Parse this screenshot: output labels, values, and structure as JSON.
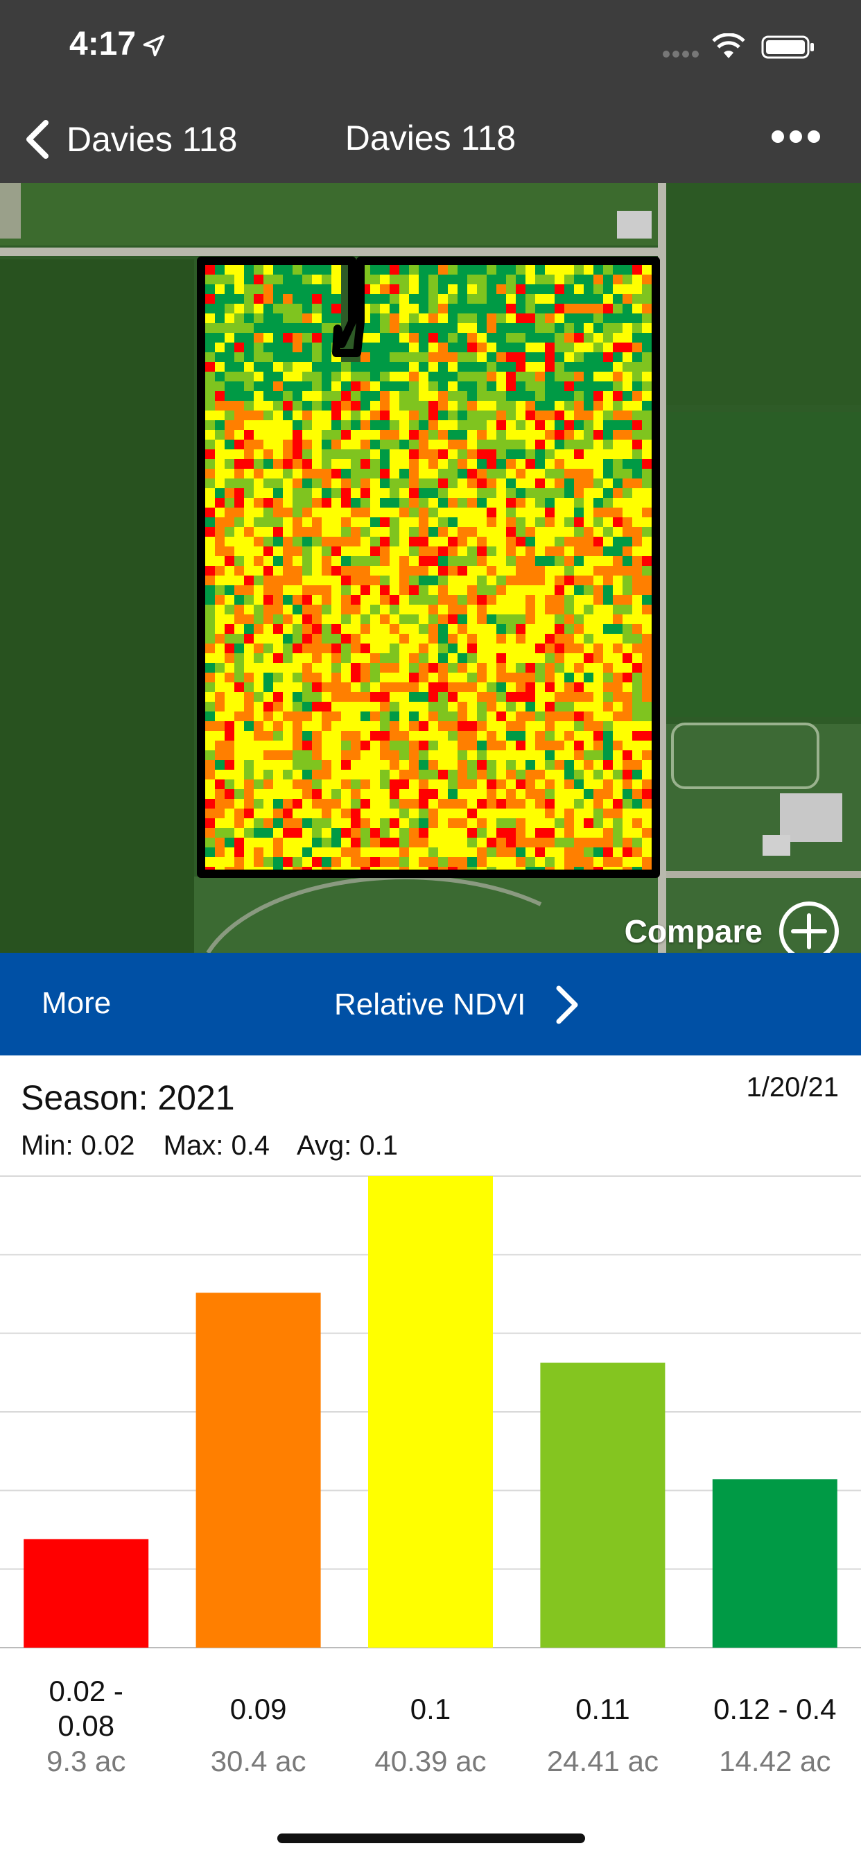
{
  "status_bar": {
    "time": "4:17"
  },
  "nav": {
    "back_label": "Davies 118",
    "title": "Davies 118"
  },
  "map": {
    "compare_label": "Compare",
    "ndvi_colors": [
      "#ff0000",
      "#ff7f00",
      "#ffff00",
      "#7fc41f",
      "#009a45"
    ]
  },
  "layer_bar": {
    "more_label": "More",
    "layer_label": "Relative NDVI"
  },
  "summary": {
    "season": "Season: 2021",
    "date": "1/20/21",
    "min": "Min: 0.02",
    "max": "Max: 0.4",
    "avg": "Avg: 0.1"
  },
  "chart_data": {
    "type": "bar",
    "categories": [
      "0.02 - 0.08",
      "0.09",
      "0.1",
      "0.11",
      "0.12 - 0.4"
    ],
    "values": [
      9.3,
      30.4,
      40.39,
      24.41,
      14.42
    ],
    "acres_labels": [
      "9.3 ac",
      "30.4 ac",
      "40.39 ac",
      "24.41 ac",
      "14.42 ac"
    ],
    "colors": [
      "#ff0000",
      "#ff7f00",
      "#ffff00",
      "#84c520",
      "#009a45"
    ],
    "ylim": [
      0,
      40.39
    ],
    "grid": true
  }
}
